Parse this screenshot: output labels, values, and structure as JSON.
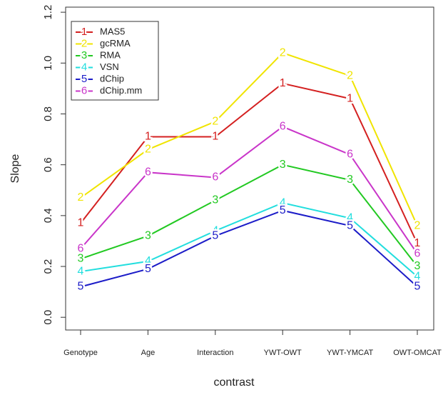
{
  "chart_data": {
    "type": "line",
    "x_label": "contrast",
    "y_label": "Slope",
    "categories": [
      "Genotype",
      "Age",
      "Interaction",
      "YWT-OWT",
      "YWT-YMCAT",
      "OWT-OMCAT"
    ],
    "ylim": [
      -0.05,
      1.22
    ],
    "yticks": [
      {
        "value": 0,
        "label": "0.0"
      },
      0.2,
      0.4,
      0.6,
      0.8,
      {
        "value": 1,
        "label": "1.0"
      },
      1.2
    ],
    "legend": "top-left",
    "series": [
      {
        "name": "MAS5",
        "marker": "1",
        "color": "#d42020",
        "values": [
          0.37,
          0.71,
          0.71,
          0.92,
          0.86,
          0.29
        ]
      },
      {
        "name": "gcRMA",
        "marker": "2",
        "color": "#f0e400",
        "values": [
          0.47,
          0.66,
          0.77,
          1.04,
          0.95,
          0.36
        ]
      },
      {
        "name": "RMA",
        "marker": "3",
        "color": "#22c922",
        "values": [
          0.23,
          0.32,
          0.46,
          0.6,
          0.54,
          0.2
        ]
      },
      {
        "name": "VSN",
        "marker": "4",
        "color": "#22dede",
        "values": [
          0.18,
          0.22,
          0.34,
          0.45,
          0.39,
          0.16
        ]
      },
      {
        "name": "dChip",
        "marker": "5",
        "color": "#1c1cc8",
        "values": [
          0.12,
          0.19,
          0.32,
          0.42,
          0.36,
          0.12
        ]
      },
      {
        "name": "dChip.mm",
        "marker": "6",
        "color": "#c935c9",
        "values": [
          0.27,
          0.57,
          0.55,
          0.75,
          0.64,
          0.25
        ]
      }
    ]
  }
}
